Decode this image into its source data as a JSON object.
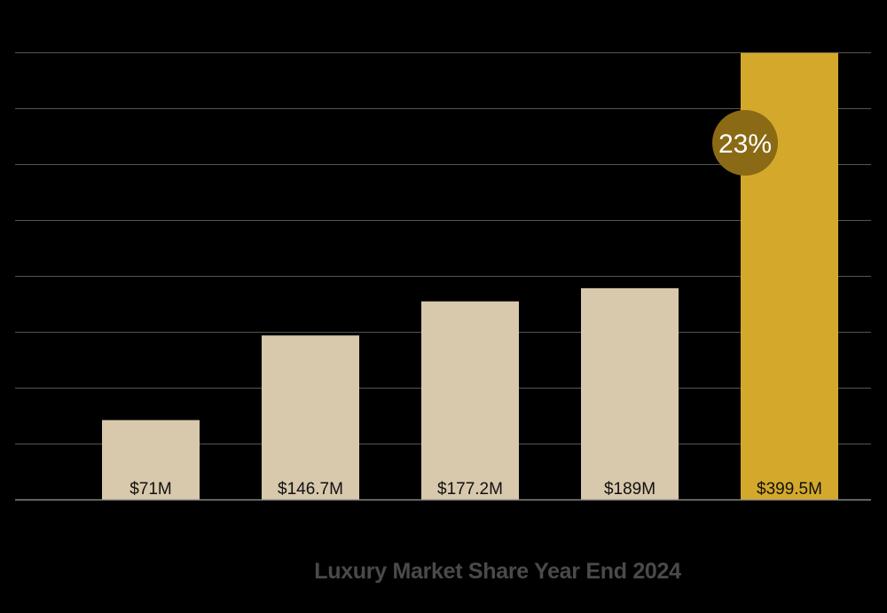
{
  "chart_data": {
    "type": "bar",
    "title": "Luxury Market Share Year End 2024",
    "categories": [
      "",
      "",
      "",
      "",
      ""
    ],
    "values": [
      71,
      146.7,
      177.2,
      189,
      399.5
    ],
    "value_labels": [
      "$71M",
      "$146.7M",
      "$177.2M",
      "$189M",
      "$399.5M"
    ],
    "ylim": [
      0,
      400
    ],
    "grid": true,
    "grid_step": 50,
    "annotation": {
      "text": "23%",
      "bar_index": 4
    },
    "colors": {
      "bar": "#d8c9ac",
      "highlight_bar": "#d4a92b",
      "badge": "#8a6a14",
      "grid": "#555555",
      "axis": "#888888",
      "background": "#000000"
    },
    "highlight_index": 4
  }
}
